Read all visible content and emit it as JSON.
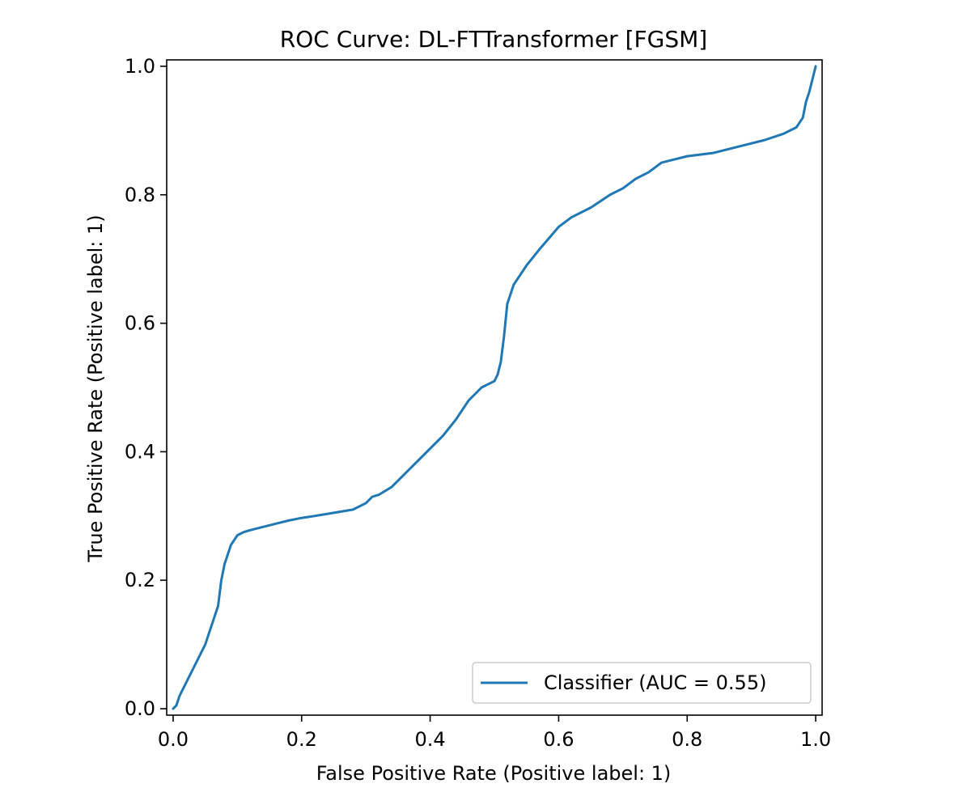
{
  "chart_data": {
    "type": "line",
    "title": "ROC Curve: DL-FTTransformer [FGSM]",
    "xlabel": "False Positive Rate (Positive label: 1)",
    "ylabel": "True Positive Rate (Positive label: 1)",
    "xlim": [
      -0.01,
      1.01
    ],
    "ylim": [
      -0.01,
      1.01
    ],
    "xticks": [
      0.0,
      0.2,
      0.4,
      0.6,
      0.8,
      1.0
    ],
    "xtick_labels": [
      "0.0",
      "0.2",
      "0.4",
      "0.6",
      "0.8",
      "1.0"
    ],
    "yticks": [
      0.0,
      0.2,
      0.4,
      0.6,
      0.8,
      1.0
    ],
    "ytick_labels": [
      "0.0",
      "0.2",
      "0.4",
      "0.6",
      "0.8",
      "1.0"
    ],
    "grid": false,
    "legend_position": "lower-right",
    "series": [
      {
        "name": "Classifier (AUC = 0.55)",
        "color": "#1f77b4",
        "x": [
          0.0,
          0.005,
          0.01,
          0.02,
          0.03,
          0.04,
          0.05,
          0.06,
          0.07,
          0.075,
          0.08,
          0.085,
          0.09,
          0.1,
          0.11,
          0.12,
          0.14,
          0.16,
          0.18,
          0.2,
          0.22,
          0.25,
          0.28,
          0.3,
          0.31,
          0.32,
          0.34,
          0.36,
          0.38,
          0.4,
          0.42,
          0.44,
          0.46,
          0.48,
          0.5,
          0.505,
          0.51,
          0.515,
          0.52,
          0.53,
          0.55,
          0.57,
          0.6,
          0.62,
          0.65,
          0.68,
          0.7,
          0.72,
          0.74,
          0.76,
          0.78,
          0.8,
          0.84,
          0.88,
          0.92,
          0.95,
          0.97,
          0.98,
          0.985,
          0.99,
          0.995,
          1.0
        ],
        "y": [
          0.0,
          0.005,
          0.02,
          0.04,
          0.06,
          0.08,
          0.1,
          0.13,
          0.16,
          0.2,
          0.225,
          0.24,
          0.255,
          0.27,
          0.275,
          0.278,
          0.283,
          0.288,
          0.293,
          0.297,
          0.3,
          0.305,
          0.31,
          0.32,
          0.33,
          0.333,
          0.345,
          0.365,
          0.385,
          0.405,
          0.425,
          0.45,
          0.48,
          0.5,
          0.51,
          0.52,
          0.54,
          0.58,
          0.63,
          0.66,
          0.69,
          0.715,
          0.75,
          0.765,
          0.78,
          0.8,
          0.81,
          0.825,
          0.835,
          0.85,
          0.855,
          0.86,
          0.865,
          0.875,
          0.885,
          0.895,
          0.905,
          0.92,
          0.945,
          0.96,
          0.98,
          1.0
        ]
      }
    ]
  }
}
